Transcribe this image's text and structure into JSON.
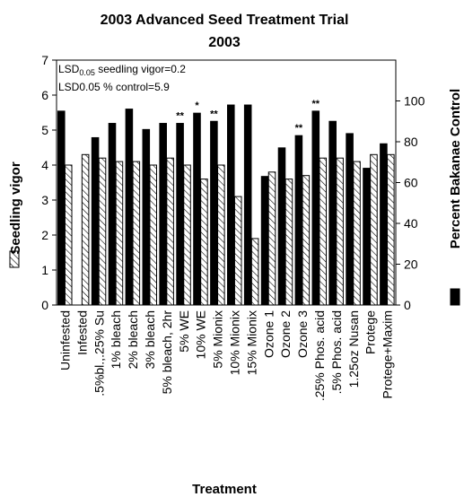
{
  "chart_data": {
    "type": "bar",
    "title": "2003 Advanced Seed Treatment Trial",
    "subtitle": "2003",
    "xlabel": "Treatment",
    "ylabel": "Seedling vigor",
    "y2label": "Percent Bakanae Control",
    "ylim": [
      0,
      7
    ],
    "y2lim": [
      0,
      120
    ],
    "yticks": [
      "0",
      "1",
      "2",
      "3",
      "4",
      "5",
      "6",
      "7"
    ],
    "y2ticks": [
      "0",
      "20",
      "40",
      "60",
      "80",
      "100"
    ],
    "annotations": [
      "LSD0.05 seedling vigor=0.2",
      "LSD0.05 % control=5.9"
    ],
    "categories": [
      "Uninfested",
      "Infested",
      ".5%bl.,.25% Su",
      "1% bleach",
      "2% bleach",
      "3% bleach",
      "5% bleach, 2hr",
      "5% WE",
      "10% WE",
      "5% Mionix",
      "10% Mionix",
      "15% Mionix",
      "Ozone 1",
      "Ozone 2",
      "Ozone 3",
      ".25% Phos. acid",
      ".5% Phos. acid",
      "1.25oz Nusan",
      "Protege",
      "Protege+Maxim"
    ],
    "series": [
      {
        "name": "Seedling vigor",
        "axis": "left",
        "pattern": "hatched",
        "values": [
          4.0,
          4.3,
          4.2,
          4.1,
          4.1,
          4.0,
          4.2,
          4.0,
          3.6,
          4.0,
          3.1,
          1.9,
          3.8,
          3.6,
          3.7,
          4.2,
          4.2,
          4.1,
          4.3,
          4.3
        ]
      },
      {
        "name": "Percent Bakanae Control",
        "axis": "right",
        "color": "#000000",
        "values": [
          95,
          null,
          82,
          89,
          96,
          86,
          89,
          89,
          94,
          90,
          98,
          98,
          63,
          77,
          83,
          95,
          90,
          84,
          67,
          79
        ]
      }
    ],
    "significance": [
      "",
      "",
      "",
      "",
      "",
      "",
      "",
      "**",
      "*",
      "**",
      "",
      "",
      "",
      "",
      "**",
      "**",
      "",
      "",
      "",
      ""
    ],
    "grid": false,
    "legend": "right"
  }
}
